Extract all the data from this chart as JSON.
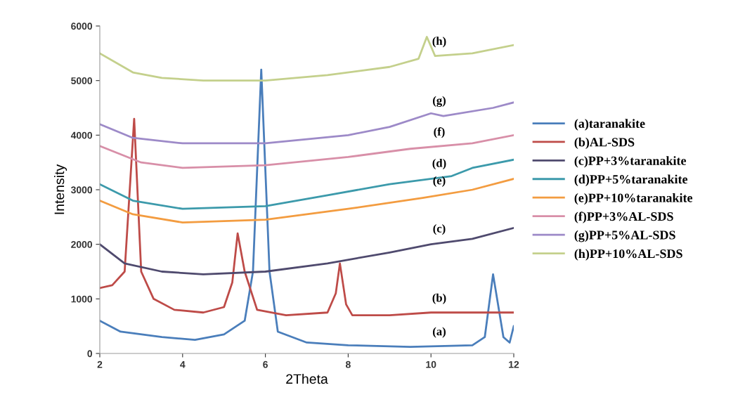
{
  "chart_data": {
    "type": "line",
    "xlabel": "2Theta",
    "ylabel": "Intensity",
    "xlim": [
      2,
      12
    ],
    "ylim": [
      0,
      6000
    ],
    "xticks": [
      2,
      4,
      6,
      8,
      10,
      12
    ],
    "yticks": [
      0,
      1000,
      2000,
      3000,
      4000,
      5000,
      6000
    ],
    "grid": false,
    "legend": "right",
    "marker": "none",
    "line_style": "solid",
    "series": [
      {
        "name": "(a)taranakite",
        "color": "#4a7ebb",
        "x": [
          2,
          2.5,
          3.5,
          4.3,
          5,
          5.5,
          5.7,
          5.9,
          6.1,
          6.3,
          7,
          8,
          9.5,
          11,
          11.3,
          11.5,
          11.75,
          11.9,
          12
        ],
        "values": [
          600,
          400,
          300,
          250,
          350,
          600,
          1500,
          5200,
          1500,
          400,
          200,
          150,
          120,
          150,
          300,
          1450,
          300,
          200,
          500
        ]
      },
      {
        "name": "(b)AL-SDS",
        "color": "#be4b48",
        "x": [
          2,
          2.3,
          2.6,
          2.83,
          3,
          3.3,
          3.8,
          4.5,
          5,
          5.2,
          5.33,
          5.5,
          5.8,
          6.5,
          7.5,
          7.7,
          7.8,
          7.95,
          8.1,
          9,
          10,
          11,
          12
        ],
        "values": [
          1200,
          1250,
          1500,
          4300,
          1500,
          1000,
          800,
          750,
          850,
          1300,
          2200,
          1500,
          800,
          700,
          750,
          1100,
          1650,
          900,
          700,
          700,
          750,
          750,
          750
        ]
      },
      {
        "name": "(c)PP+3%taranakite",
        "color": "#4f4a6e",
        "x": [
          2,
          2.6,
          3.5,
          4.5,
          6,
          7.5,
          9,
          10,
          11,
          12
        ],
        "values": [
          2000,
          1650,
          1500,
          1450,
          1500,
          1650,
          1850,
          2000,
          2100,
          2300
        ]
      },
      {
        "name": "(d)PP+5%taranakite",
        "color": "#3c9aab",
        "x": [
          2,
          2.8,
          4,
          6,
          7.5,
          9,
          10.5,
          11,
          12
        ],
        "values": [
          3100,
          2800,
          2650,
          2700,
          2900,
          3100,
          3250,
          3400,
          3550
        ]
      },
      {
        "name": "(e)PP+10%taranakite",
        "color": "#f39c40",
        "x": [
          2,
          2.8,
          4,
          6,
          8,
          9.8,
          11,
          12
        ],
        "values": [
          2800,
          2550,
          2400,
          2450,
          2650,
          2850,
          3000,
          3200
        ]
      },
      {
        "name": "(f)PP+3%AL-SDS",
        "color": "#d88fa8",
        "x": [
          2,
          3,
          4,
          6,
          8,
          9.5,
          11,
          12
        ],
        "values": [
          3800,
          3500,
          3400,
          3450,
          3600,
          3750,
          3850,
          4000
        ]
      },
      {
        "name": "(g)PP+5%AL-SDS",
        "color": "#9d8ac8",
        "x": [
          2,
          2.8,
          4,
          6,
          8,
          9,
          10,
          10.3,
          11.5,
          12
        ],
        "values": [
          4200,
          3950,
          3850,
          3850,
          4000,
          4150,
          4400,
          4350,
          4500,
          4600
        ]
      },
      {
        "name": "(h)PP+10%AL-SDS",
        "color": "#c4d08c",
        "x": [
          2,
          2.8,
          3.5,
          4.5,
          6,
          7.5,
          9,
          9.7,
          9.9,
          10.1,
          11,
          12
        ],
        "values": [
          5500,
          5150,
          5050,
          5000,
          5000,
          5100,
          5250,
          5400,
          5800,
          5450,
          5500,
          5650
        ]
      }
    ],
    "annotations": [
      "(a)",
      "(b)",
      "(c)",
      "(d)",
      "(e)",
      "(f)",
      "(g)",
      "(h)"
    ]
  }
}
